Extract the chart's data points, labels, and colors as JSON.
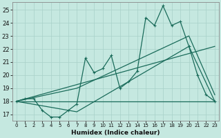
{
  "xlabel": "Humidex (Indice chaleur)",
  "background_color": "#c5e8e0",
  "line_color": "#1a6b5a",
  "xlim": [
    -0.5,
    23.5
  ],
  "ylim": [
    16.5,
    25.6
  ],
  "yticks": [
    17,
    18,
    19,
    20,
    21,
    22,
    23,
    24,
    25
  ],
  "xticks": [
    0,
    1,
    2,
    3,
    4,
    5,
    6,
    7,
    8,
    9,
    10,
    11,
    12,
    13,
    14,
    15,
    16,
    17,
    18,
    19,
    20,
    21,
    22,
    23
  ],
  "series1_x": [
    0,
    1,
    2,
    3,
    4,
    5,
    6,
    7,
    8,
    9,
    10,
    11,
    12,
    13,
    14,
    15,
    16,
    17,
    18,
    19,
    20,
    21,
    22,
    23
  ],
  "series1_y": [
    18.0,
    18.2,
    18.2,
    17.3,
    16.8,
    16.8,
    17.3,
    17.8,
    21.3,
    20.2,
    20.5,
    21.5,
    19.0,
    19.5,
    20.3,
    24.4,
    23.8,
    25.3,
    23.8,
    24.1,
    22.2,
    20.0,
    18.5,
    18.0
  ],
  "series2_x": [
    0,
    23
  ],
  "series2_y": [
    18.0,
    22.2
  ],
  "series3_x": [
    0,
    23
  ],
  "series3_y": [
    18.0,
    18.0
  ],
  "series4_x": [
    0,
    7,
    20,
    23
  ],
  "series4_y": [
    18.0,
    19.0,
    23.0,
    18.5
  ],
  "series5_x": [
    0,
    7,
    20,
    23
  ],
  "series5_y": [
    18.0,
    17.2,
    22.2,
    18.0
  ]
}
